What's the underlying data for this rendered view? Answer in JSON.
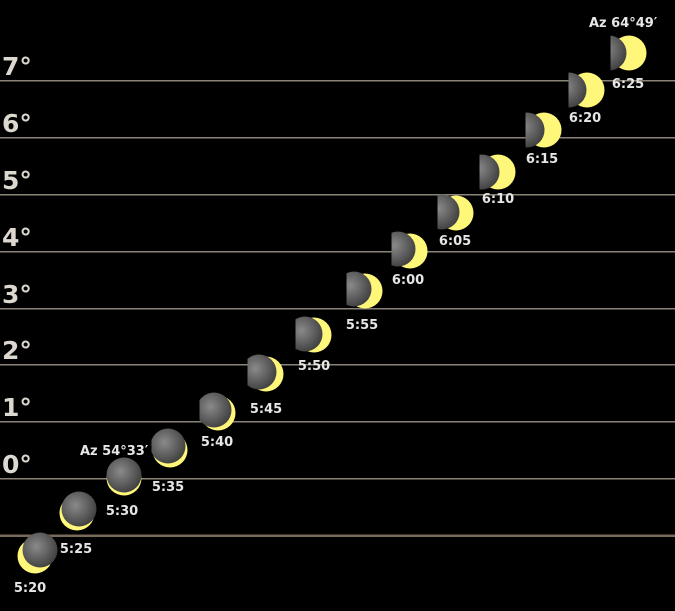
{
  "colors": {
    "background": "#000000",
    "grid_line": "#8a8478",
    "horizon_line": "#7a6a5a",
    "sun": "#fff77a",
    "moon": "#5c5c5c"
  },
  "altitude_labels": [
    "7°",
    "6°",
    "5°",
    "4°",
    "3°",
    "2°",
    "1°",
    "0°"
  ],
  "azimuth_start": "Az 54°33′",
  "azimuth_end": "Az 64°49′",
  "times": [
    "5:20",
    "5:25",
    "5:30",
    "5:35",
    "5:40",
    "5:45",
    "5:50",
    "5:55",
    "6:00",
    "6:05",
    "6:10",
    "6:15",
    "6:20",
    "6:25"
  ]
}
